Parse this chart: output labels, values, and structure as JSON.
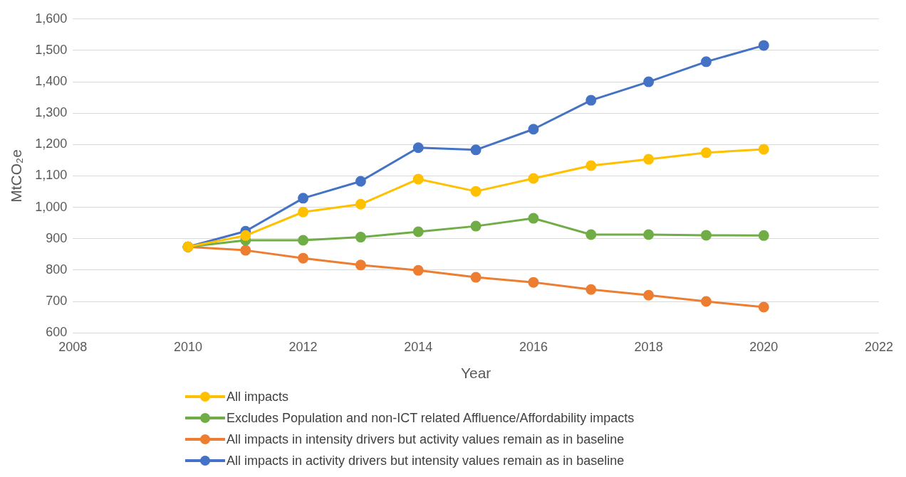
{
  "chart_data": {
    "type": "line",
    "xlabel": "Year",
    "ylabel": "MtCO₂e",
    "x": [
      2010,
      2011,
      2012,
      2013,
      2014,
      2015,
      2016,
      2017,
      2018,
      2019,
      2020
    ],
    "xlim": [
      2008,
      2022
    ],
    "xticks": [
      2008,
      2010,
      2012,
      2014,
      2016,
      2018,
      2020,
      2022
    ],
    "ylim": [
      600,
      1600
    ],
    "yticks": [
      600,
      700,
      800,
      900,
      {
        "value": 1000,
        "label": "1,000"
      },
      {
        "value": 1100,
        "label": "1,100"
      },
      {
        "value": 1200,
        "label": "1,200"
      },
      {
        "value": 1300,
        "label": "1,300"
      },
      {
        "value": 1400,
        "label": "1,400"
      },
      {
        "value": 1500,
        "label": "1,500"
      },
      {
        "value": 1600,
        "label": "1,600"
      }
    ],
    "grid": "y",
    "legend": "bottom",
    "marker": "circle",
    "line_style": "solid",
    "series": [
      {
        "name": "All impacts",
        "color": "#ffc000",
        "values": [
          874,
          910,
          985,
          1010,
          1090,
          1051,
          1092,
          1133,
          1153,
          1174,
          1185
        ]
      },
      {
        "name": "Excludes Population and non-ICT related Affluence/Affordability impacts",
        "color": "#70ad47",
        "values": [
          874,
          895,
          895,
          905,
          922,
          940,
          965,
          913,
          913,
          911,
          910
        ]
      },
      {
        "name": "All impacts in intensity drivers but activity values remain as in baseline",
        "color": "#ed7d31",
        "values": [
          874,
          863,
          838,
          816,
          799,
          777,
          761,
          738,
          720,
          700,
          682
        ]
      },
      {
        "name": "All impacts in activity drivers but intensity values remain as in baseline",
        "color": "#4472c4",
        "values": [
          874,
          924,
          1029,
          1083,
          1190,
          1183,
          1249,
          1341,
          1400,
          1464,
          1516
        ]
      }
    ]
  }
}
